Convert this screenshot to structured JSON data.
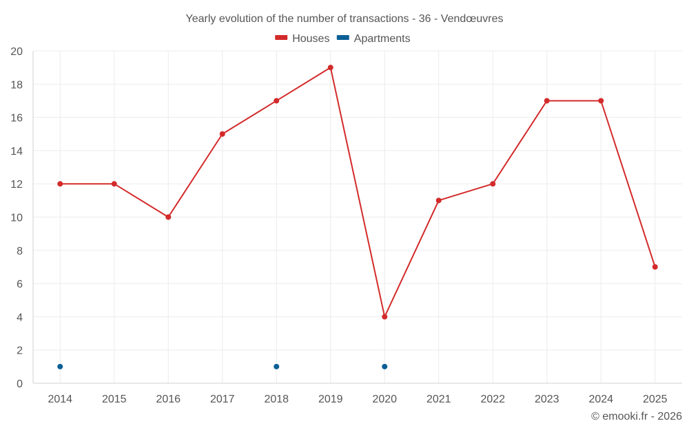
{
  "chart_data": {
    "type": "line",
    "title": "Yearly evolution of the number of transactions - 36 - Vendœuvres",
    "categories": [
      "2014",
      "2015",
      "2016",
      "2017",
      "2018",
      "2019",
      "2020",
      "2021",
      "2022",
      "2023",
      "2024",
      "2025"
    ],
    "series": [
      {
        "name": "Houses",
        "color": "#d32a2a",
        "values": [
          12,
          12,
          10,
          15,
          17,
          19,
          4,
          11,
          12,
          17,
          17,
          7
        ]
      },
      {
        "name": "Apartments",
        "color": "#0a5f96",
        "values": [
          1,
          null,
          null,
          null,
          1,
          null,
          1,
          null,
          null,
          null,
          null,
          null
        ]
      }
    ],
    "ylim": [
      0,
      20
    ],
    "yticks": [
      0,
      2,
      4,
      6,
      8,
      10,
      12,
      14,
      16,
      18,
      20
    ],
    "xlabel": "",
    "ylabel": "",
    "grid": true,
    "legend": "top-center"
  },
  "credit": "© emooki.fr - 2026"
}
